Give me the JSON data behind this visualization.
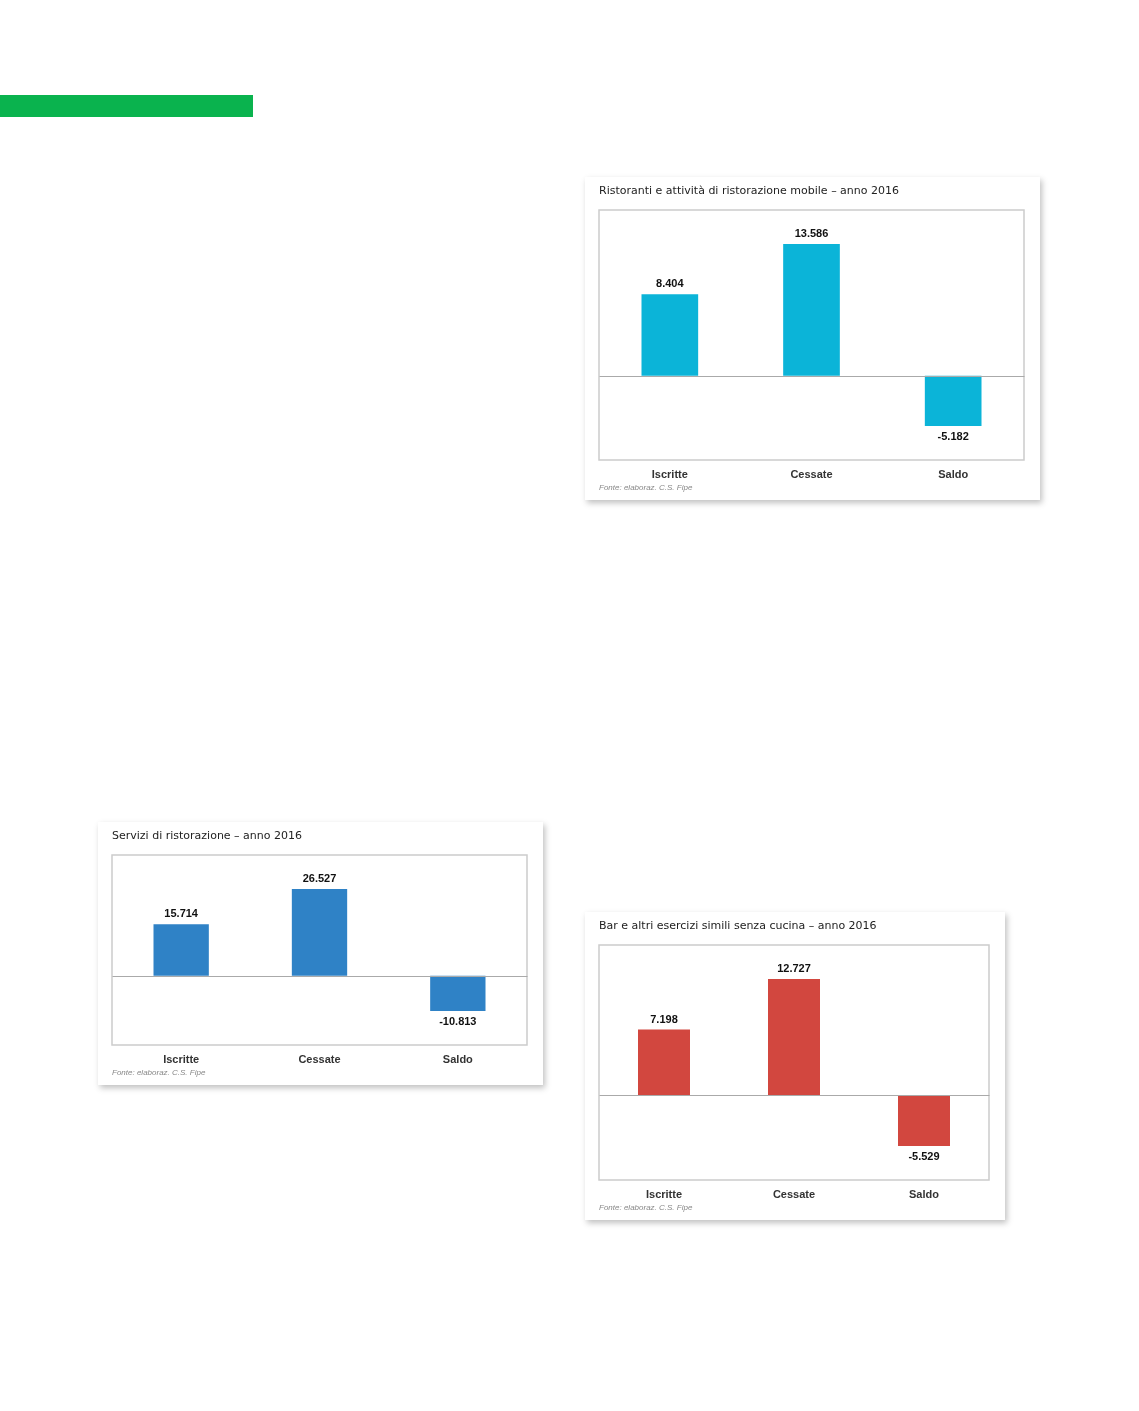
{
  "chart_data": [
    {
      "type": "bar",
      "title": "Ristoranti e attività di ristorazione mobile – anno 2016",
      "categories": [
        "Iscritte",
        "Cessate",
        "Saldo"
      ],
      "series": [
        {
          "color": "#0bb4d8",
          "values": [
            8404,
            13586,
            -5182
          ],
          "value_labels": [
            "8.404",
            "13.586",
            "-5.182"
          ]
        }
      ],
      "annotations": [
        "Fonte: elaboraz. C.S. Fipe"
      ]
    },
    {
      "type": "bar",
      "title": "Servizi di ristorazione – anno 2016",
      "categories": [
        "Iscritte",
        "Cessate",
        "Saldo"
      ],
      "series": [
        {
          "color": "#2f82c6",
          "values": [
            15714,
            26527,
            -10813
          ],
          "value_labels": [
            "15.714",
            "26.527",
            "-10.813"
          ]
        }
      ],
      "annotations": [
        "Fonte: elaboraz. C.S. Fipe"
      ]
    },
    {
      "type": "bar",
      "title": "Bar e altri esercizi simili senza cucina – anno 2016",
      "categories": [
        "Iscritte",
        "Cessate",
        "Saldo"
      ],
      "series": [
        {
          "color": "#d2473f",
          "values": [
            7198,
            12727,
            -5529
          ],
          "value_labels": [
            "7.198",
            "12.727",
            "-5.529"
          ]
        }
      ],
      "annotations": [
        "Fonte: elaboraz. C.S. Fipe"
      ]
    }
  ]
}
